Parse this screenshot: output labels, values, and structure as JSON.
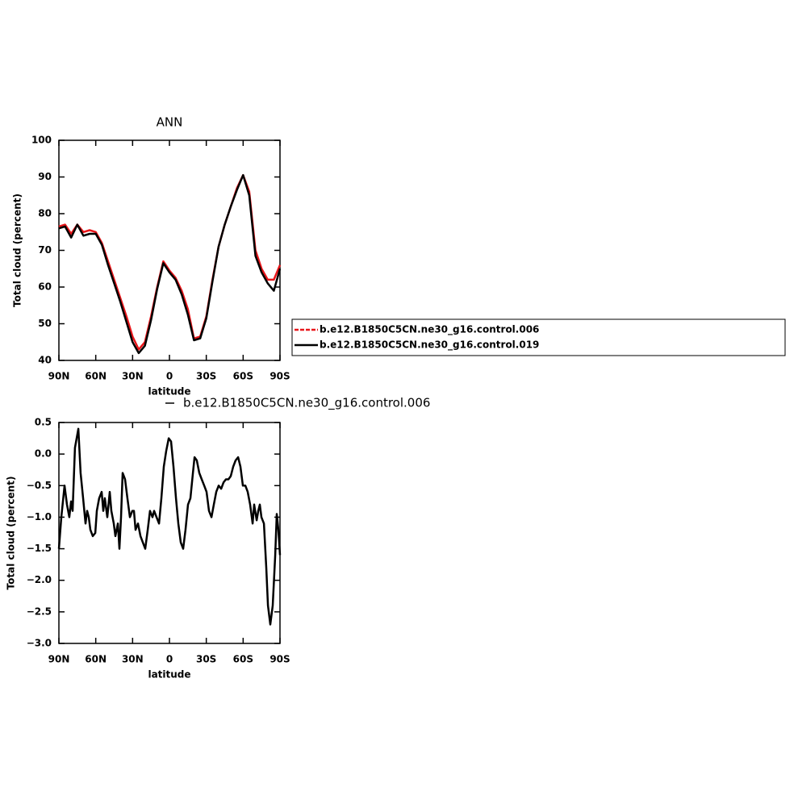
{
  "chart_data": [
    {
      "type": "line",
      "title": "ANN",
      "xlabel": "latitude",
      "ylabel": "Total cloud (percent)",
      "x": [
        90,
        85,
        80,
        75,
        70,
        65,
        60,
        55,
        50,
        45,
        40,
        35,
        30,
        25,
        20,
        15,
        10,
        5,
        0,
        -5,
        -10,
        -15,
        -20,
        -25,
        -30,
        -35,
        -40,
        -45,
        -50,
        -55,
        -60,
        -65,
        -70,
        -75,
        -80,
        -85,
        -90
      ],
      "series": [
        {
          "name": "b.e12.B1850C5CN.ne30_g16.control.006",
          "color": "#e8161a",
          "values": [
            76.5,
            77,
            74.5,
            77,
            75,
            75.5,
            75,
            72,
            67,
            62,
            57,
            52,
            46.5,
            43,
            45,
            52,
            60,
            67,
            64.5,
            62.5,
            59,
            54,
            46,
            46.5,
            52,
            62,
            71,
            77,
            82,
            87,
            90.5,
            86,
            70,
            65,
            62,
            62,
            66
          ]
        },
        {
          "name": "b.e12.B1850C5CN.ne30_g16.control.019",
          "color": "#000000",
          "values": [
            76,
            76.5,
            73.5,
            77,
            74,
            74.5,
            74.5,
            71.5,
            66,
            61,
            56,
            50.5,
            45,
            42,
            44,
            51,
            59.5,
            66.5,
            64,
            62,
            58,
            52.5,
            45.5,
            46,
            51.5,
            61.5,
            71,
            77,
            82,
            86.5,
            90.5,
            85,
            68.5,
            64,
            61,
            59,
            65
          ]
        }
      ],
      "xlim": [
        90,
        -90
      ],
      "xticks": [
        {
          "value": 90,
          "label": "90N"
        },
        {
          "value": 60,
          "label": "60N"
        },
        {
          "value": 30,
          "label": "30N"
        },
        0,
        {
          "value": -30,
          "label": "30S"
        },
        {
          "value": -60,
          "label": "60S"
        },
        {
          "value": -90,
          "label": "90S"
        }
      ],
      "ylim": [
        40,
        100
      ],
      "yticks": [
        40,
        50,
        60,
        70,
        80,
        90,
        100
      ],
      "legend": "right"
    },
    {
      "type": "line",
      "xlabel": "latitude",
      "ylabel": "Total cloud (percent)",
      "x": [
        90,
        88.0,
        85.4,
        83.4,
        81.5,
        80.1,
        78.8,
        76.9,
        74.2,
        72.3,
        70.3,
        68.3,
        67.0,
        65.7,
        64.4,
        62.4,
        60.4,
        59.1,
        57.2,
        55.2,
        53.9,
        52.6,
        50.6,
        48.6,
        47.3,
        45.3,
        44.0,
        42.0,
        40.7,
        39.4,
        38.1,
        36.1,
        34.2,
        32.2,
        30.2,
        28.9,
        27.6,
        25.6,
        23.6,
        21.7,
        19.7,
        17.7,
        15.8,
        13.8,
        12.5,
        10.5,
        8.5,
        6.6,
        4.6,
        2.6,
        0.6,
        -1.3,
        -3.3,
        -5.3,
        -7.2,
        -9.2,
        -11.2,
        -13.1,
        -15.1,
        -17.1,
        -19.1,
        -20.4,
        -22.3,
        -24.3,
        -26.3,
        -28.3,
        -30.2,
        -32.2,
        -34.2,
        -36.1,
        -38.1,
        -40.1,
        -42.1,
        -44.0,
        -46.0,
        -48.0,
        -49.9,
        -51.9,
        -53.9,
        -55.9,
        -57.8,
        -59.8,
        -61.8,
        -63.7,
        -65.7,
        -67.7,
        -69.0,
        -71.0,
        -72.3,
        -73.6,
        -74.9,
        -76.9,
        -78.8,
        -80.2,
        -82.1,
        -84.1,
        -86.1,
        -87.4,
        -88.7,
        -90
      ],
      "series": [
        {
          "name": "b.e12.B1850C5CN.ne30_g16.control.006",
          "color": "#000000",
          "values": [
            -1.5,
            -1.0,
            -0.5,
            -0.8,
            -1.0,
            -0.75,
            -0.9,
            0.1,
            0.4,
            -0.3,
            -0.7,
            -1.1,
            -0.9,
            -1.0,
            -1.2,
            -1.3,
            -1.25,
            -0.9,
            -0.7,
            -0.6,
            -0.9,
            -0.7,
            -1.0,
            -0.6,
            -0.9,
            -1.1,
            -1.3,
            -1.1,
            -1.5,
            -1.0,
            -0.3,
            -0.4,
            -0.7,
            -1.0,
            -0.9,
            -0.9,
            -1.2,
            -1.1,
            -1.3,
            -1.4,
            -1.5,
            -1.2,
            -0.9,
            -1.0,
            -0.9,
            -1.0,
            -1.1,
            -0.7,
            -0.2,
            0.05,
            0.25,
            0.2,
            -0.2,
            -0.7,
            -1.1,
            -1.4,
            -1.5,
            -1.2,
            -0.8,
            -0.7,
            -0.3,
            -0.05,
            -0.1,
            -0.3,
            -0.4,
            -0.5,
            -0.6,
            -0.9,
            -1.0,
            -0.8,
            -0.6,
            -0.5,
            -0.55,
            -0.45,
            -0.4,
            -0.4,
            -0.35,
            -0.2,
            -0.1,
            -0.05,
            -0.2,
            -0.5,
            -0.5,
            -0.6,
            -0.8,
            -1.1,
            -0.8,
            -1.05,
            -0.9,
            -0.8,
            -1.0,
            -1.1,
            -1.8,
            -2.4,
            -2.7,
            -2.4,
            -1.6,
            -0.95,
            -1.2,
            -1.6
          ]
        }
      ],
      "xlim": [
        90,
        -90
      ],
      "xticks": [
        {
          "value": 90,
          "label": "90N"
        },
        {
          "value": 60,
          "label": "60N"
        },
        {
          "value": 30,
          "label": "30N"
        },
        0,
        {
          "value": -30,
          "label": "30S"
        },
        {
          "value": -60,
          "label": "60S"
        },
        {
          "value": -90,
          "label": "90S"
        }
      ],
      "ylim": [
        -3,
        0.5
      ],
      "yticks": [
        {
          "value": -3,
          "label": "−3.0"
        },
        {
          "value": -2.5,
          "label": "−2.5"
        },
        {
          "value": -2,
          "label": "−2.0"
        },
        {
          "value": -1.5,
          "label": "−1.5"
        },
        {
          "value": -1,
          "label": "−1.0"
        },
        {
          "value": -0.5,
          "label": "−0.5"
        },
        {
          "value": 0,
          "label": "0.0"
        },
        0.5
      ],
      "legend": "top"
    }
  ]
}
